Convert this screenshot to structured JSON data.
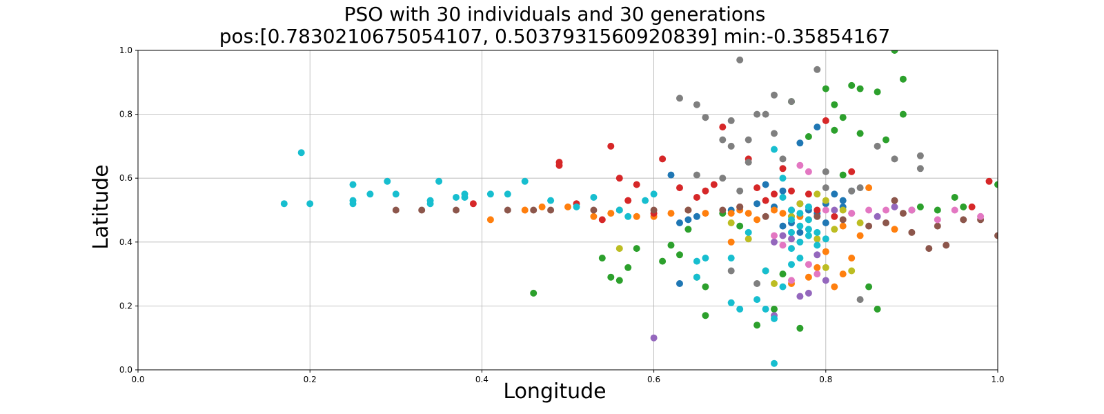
{
  "chart_data": {
    "type": "scatter",
    "title": "PSO with 30 individuals and 30 generations",
    "subtitle": "pos:[0.7830210675054107, 0.5037931560920839] min:-0.35854167",
    "xlabel": "Longitude",
    "ylabel": "Latitude",
    "xlim": [
      0.0,
      1.0
    ],
    "ylim": [
      0.0,
      1.0
    ],
    "xticks": [
      "0.0",
      "0.2",
      "0.4",
      "0.6",
      "0.8",
      "1.0"
    ],
    "yticks": [
      "0.0",
      "0.2",
      "0.4",
      "0.6",
      "0.8",
      "1.0"
    ],
    "grid": true,
    "colors": [
      "#1f77b4",
      "#ff7f0e",
      "#2ca02c",
      "#d62728",
      "#9467bd",
      "#8c564b",
      "#e377c2",
      "#7f7f7f",
      "#bcbd22",
      "#17becf"
    ],
    "series": [
      {
        "color": "#1f77b4",
        "points": [
          [
            0.62,
            0.61
          ],
          [
            0.63,
            0.46
          ],
          [
            0.63,
            0.27
          ],
          [
            0.64,
            0.47
          ],
          [
            0.65,
            0.48
          ],
          [
            0.69,
            0.5
          ],
          [
            0.72,
            0.52
          ],
          [
            0.75,
            0.56
          ],
          [
            0.75,
            0.45
          ],
          [
            0.76,
            0.48
          ],
          [
            0.76,
            0.46
          ],
          [
            0.77,
            0.71
          ],
          [
            0.78,
            0.5
          ],
          [
            0.78,
            0.51
          ],
          [
            0.79,
            0.49
          ],
          [
            0.79,
            0.76
          ],
          [
            0.8,
            0.52
          ],
          [
            0.81,
            0.55
          ],
          [
            0.82,
            0.53
          ],
          [
            0.82,
            0.51
          ],
          [
            0.83,
            0.56
          ],
          [
            0.73,
            0.58
          ],
          [
            0.74,
            0.51
          ],
          [
            0.77,
            0.43
          ],
          [
            0.8,
            0.46
          ]
        ]
      },
      {
        "color": "#ff7f0e",
        "points": [
          [
            0.41,
            0.47
          ],
          [
            0.45,
            0.5
          ],
          [
            0.47,
            0.51
          ],
          [
            0.5,
            0.51
          ],
          [
            0.53,
            0.48
          ],
          [
            0.55,
            0.49
          ],
          [
            0.58,
            0.48
          ],
          [
            0.6,
            0.48
          ],
          [
            0.62,
            0.49
          ],
          [
            0.64,
            0.5
          ],
          [
            0.66,
            0.49
          ],
          [
            0.69,
            0.49
          ],
          [
            0.7,
            0.5
          ],
          [
            0.71,
            0.49
          ],
          [
            0.72,
            0.47
          ],
          [
            0.75,
            0.49
          ],
          [
            0.76,
            0.27
          ],
          [
            0.78,
            0.29
          ],
          [
            0.79,
            0.32
          ],
          [
            0.8,
            0.37
          ],
          [
            0.81,
            0.26
          ],
          [
            0.82,
            0.3
          ],
          [
            0.83,
            0.35
          ],
          [
            0.84,
            0.42
          ],
          [
            0.85,
            0.57
          ],
          [
            0.88,
            0.44
          ],
          [
            0.69,
            0.4
          ],
          [
            0.74,
            0.5
          ],
          [
            0.77,
            0.48
          ],
          [
            0.82,
            0.45
          ]
        ]
      },
      {
        "color": "#2ca02c",
        "points": [
          [
            0.46,
            0.24
          ],
          [
            0.54,
            0.35
          ],
          [
            0.55,
            0.29
          ],
          [
            0.56,
            0.28
          ],
          [
            0.57,
            0.32
          ],
          [
            0.58,
            0.38
          ],
          [
            0.61,
            0.34
          ],
          [
            0.62,
            0.39
          ],
          [
            0.63,
            0.36
          ],
          [
            0.64,
            0.44
          ],
          [
            0.65,
            0.29
          ],
          [
            0.66,
            0.26
          ],
          [
            0.66,
            0.17
          ],
          [
            0.68,
            0.49
          ],
          [
            0.7,
            0.45
          ],
          [
            0.72,
            0.14
          ],
          [
            0.73,
            0.31
          ],
          [
            0.74,
            0.19
          ],
          [
            0.75,
            0.3
          ],
          [
            0.76,
            0.84
          ],
          [
            0.77,
            0.13
          ],
          [
            0.78,
            0.73
          ],
          [
            0.8,
            0.88
          ],
          [
            0.81,
            0.75
          ],
          [
            0.81,
            0.83
          ],
          [
            0.82,
            0.79
          ],
          [
            0.82,
            0.61
          ],
          [
            0.83,
            0.89
          ],
          [
            0.84,
            0.74
          ],
          [
            0.84,
            0.88
          ],
          [
            0.85,
            0.26
          ],
          [
            0.86,
            0.87
          ],
          [
            0.86,
            0.19
          ],
          [
            0.87,
            0.72
          ],
          [
            0.88,
            1.0
          ],
          [
            0.89,
            0.8
          ],
          [
            0.89,
            0.91
          ],
          [
            0.9,
            0.5
          ],
          [
            0.91,
            0.51
          ],
          [
            0.93,
            0.5
          ],
          [
            0.95,
            0.54
          ],
          [
            0.96,
            0.51
          ],
          [
            1.0,
            0.58
          ]
        ]
      },
      {
        "color": "#d62728",
        "points": [
          [
            0.39,
            0.52
          ],
          [
            0.49,
            0.65
          ],
          [
            0.49,
            0.64
          ],
          [
            0.51,
            0.52
          ],
          [
            0.54,
            0.47
          ],
          [
            0.55,
            0.7
          ],
          [
            0.56,
            0.6
          ],
          [
            0.57,
            0.53
          ],
          [
            0.58,
            0.58
          ],
          [
            0.6,
            0.49
          ],
          [
            0.61,
            0.66
          ],
          [
            0.63,
            0.57
          ],
          [
            0.65,
            0.54
          ],
          [
            0.66,
            0.56
          ],
          [
            0.67,
            0.58
          ],
          [
            0.68,
            0.76
          ],
          [
            0.7,
            0.51
          ],
          [
            0.71,
            0.66
          ],
          [
            0.72,
            0.57
          ],
          [
            0.73,
            0.53
          ],
          [
            0.74,
            0.55
          ],
          [
            0.75,
            0.63
          ],
          [
            0.76,
            0.56
          ],
          [
            0.77,
            0.52
          ],
          [
            0.78,
            0.55
          ],
          [
            0.79,
            0.5
          ],
          [
            0.8,
            0.78
          ],
          [
            0.81,
            0.48
          ],
          [
            0.83,
            0.62
          ],
          [
            0.97,
            0.51
          ],
          [
            0.99,
            0.59
          ]
        ]
      },
      {
        "color": "#9467bd",
        "points": [
          [
            0.6,
            0.1
          ],
          [
            0.74,
            0.4
          ],
          [
            0.75,
            0.42
          ],
          [
            0.77,
            0.23
          ],
          [
            0.78,
            0.24
          ],
          [
            0.79,
            0.36
          ],
          [
            0.8,
            0.28
          ],
          [
            0.81,
            0.5
          ],
          [
            0.83,
            0.49
          ],
          [
            0.86,
            0.48
          ],
          [
            0.88,
            0.51
          ],
          [
            0.9,
            0.5
          ],
          [
            0.74,
            0.17
          ],
          [
            0.76,
            0.41
          ]
        ]
      },
      {
        "color": "#8c564b",
        "points": [
          [
            0.3,
            0.5
          ],
          [
            0.33,
            0.5
          ],
          [
            0.37,
            0.5
          ],
          [
            0.43,
            0.5
          ],
          [
            0.46,
            0.5
          ],
          [
            0.48,
            0.5
          ],
          [
            0.53,
            0.5
          ],
          [
            0.56,
            0.5
          ],
          [
            0.6,
            0.5
          ],
          [
            0.64,
            0.5
          ],
          [
            0.68,
            0.5
          ],
          [
            0.7,
            0.51
          ],
          [
            0.73,
            0.48
          ],
          [
            0.76,
            0.5
          ],
          [
            0.79,
            0.48
          ],
          [
            0.82,
            0.47
          ],
          [
            0.85,
            0.45
          ],
          [
            0.87,
            0.46
          ],
          [
            0.89,
            0.49
          ],
          [
            0.9,
            0.43
          ],
          [
            0.92,
            0.38
          ],
          [
            0.93,
            0.45
          ],
          [
            0.94,
            0.39
          ],
          [
            0.96,
            0.47
          ],
          [
            0.98,
            0.47
          ],
          [
            1.0,
            0.42
          ],
          [
            0.88,
            0.53
          ]
        ]
      },
      {
        "color": "#e377c2",
        "points": [
          [
            0.74,
            0.42
          ],
          [
            0.75,
            0.39
          ],
          [
            0.77,
            0.64
          ],
          [
            0.78,
            0.62
          ],
          [
            0.78,
            0.33
          ],
          [
            0.79,
            0.3
          ],
          [
            0.8,
            0.5
          ],
          [
            0.83,
            0.49
          ],
          [
            0.85,
            0.5
          ],
          [
            0.87,
            0.5
          ],
          [
            0.9,
            0.5
          ],
          [
            0.93,
            0.47
          ],
          [
            0.95,
            0.5
          ],
          [
            0.98,
            0.48
          ],
          [
            0.76,
            0.28
          ]
        ]
      },
      {
        "color": "#7f7f7f",
        "points": [
          [
            0.63,
            0.85
          ],
          [
            0.65,
            0.61
          ],
          [
            0.65,
            0.83
          ],
          [
            0.66,
            0.79
          ],
          [
            0.68,
            0.6
          ],
          [
            0.68,
            0.72
          ],
          [
            0.69,
            0.78
          ],
          [
            0.69,
            0.7
          ],
          [
            0.7,
            0.97
          ],
          [
            0.7,
            0.56
          ],
          [
            0.71,
            0.65
          ],
          [
            0.71,
            0.72
          ],
          [
            0.72,
            0.8
          ],
          [
            0.73,
            0.8
          ],
          [
            0.74,
            0.86
          ],
          [
            0.74,
            0.74
          ],
          [
            0.75,
            0.66
          ],
          [
            0.76,
            0.84
          ],
          [
            0.79,
            0.94
          ],
          [
            0.8,
            0.62
          ],
          [
            0.8,
            0.57
          ],
          [
            0.83,
            0.56
          ],
          [
            0.84,
            0.57
          ],
          [
            0.84,
            0.22
          ],
          [
            0.86,
            0.7
          ],
          [
            0.88,
            0.66
          ],
          [
            0.91,
            0.67
          ],
          [
            0.91,
            0.63
          ],
          [
            0.69,
            0.31
          ],
          [
            0.72,
            0.27
          ]
        ]
      },
      {
        "color": "#bcbd22",
        "points": [
          [
            0.56,
            0.38
          ],
          [
            0.69,
            0.46
          ],
          [
            0.71,
            0.41
          ],
          [
            0.74,
            0.27
          ],
          [
            0.76,
            0.48
          ],
          [
            0.78,
            0.47
          ],
          [
            0.79,
            0.55
          ],
          [
            0.8,
            0.53
          ],
          [
            0.8,
            0.32
          ],
          [
            0.81,
            0.44
          ],
          [
            0.82,
            0.5
          ],
          [
            0.83,
            0.31
          ],
          [
            0.84,
            0.46
          ],
          [
            0.77,
            0.52
          ],
          [
            0.79,
            0.41
          ]
        ]
      },
      {
        "color": "#17becf",
        "points": [
          [
            0.17,
            0.52
          ],
          [
            0.19,
            0.68
          ],
          [
            0.2,
            0.52
          ],
          [
            0.25,
            0.58
          ],
          [
            0.25,
            0.53
          ],
          [
            0.25,
            0.52
          ],
          [
            0.27,
            0.55
          ],
          [
            0.29,
            0.59
          ],
          [
            0.3,
            0.55
          ],
          [
            0.34,
            0.53
          ],
          [
            0.34,
            0.52
          ],
          [
            0.35,
            0.59
          ],
          [
            0.37,
            0.54
          ],
          [
            0.38,
            0.54
          ],
          [
            0.38,
            0.55
          ],
          [
            0.41,
            0.55
          ],
          [
            0.43,
            0.55
          ],
          [
            0.45,
            0.59
          ],
          [
            0.48,
            0.53
          ],
          [
            0.51,
            0.51
          ],
          [
            0.53,
            0.54
          ],
          [
            0.56,
            0.5
          ],
          [
            0.57,
            0.48
          ],
          [
            0.59,
            0.53
          ],
          [
            0.6,
            0.55
          ],
          [
            0.65,
            0.34
          ],
          [
            0.65,
            0.29
          ],
          [
            0.66,
            0.35
          ],
          [
            0.69,
            0.35
          ],
          [
            0.69,
            0.21
          ],
          [
            0.7,
            0.19
          ],
          [
            0.71,
            0.43
          ],
          [
            0.72,
            0.22
          ],
          [
            0.73,
            0.31
          ],
          [
            0.73,
            0.19
          ],
          [
            0.74,
            0.69
          ],
          [
            0.74,
            0.16
          ],
          [
            0.74,
            0.02
          ],
          [
            0.75,
            0.26
          ],
          [
            0.75,
            0.6
          ],
          [
            0.75,
            0.54
          ],
          [
            0.76,
            0.47
          ],
          [
            0.76,
            0.43
          ],
          [
            0.76,
            0.38
          ],
          [
            0.76,
            0.33
          ],
          [
            0.77,
            0.45
          ],
          [
            0.77,
            0.4
          ],
          [
            0.77,
            0.35
          ],
          [
            0.78,
            0.44
          ],
          [
            0.78,
            0.42
          ],
          [
            0.78,
            0.47
          ],
          [
            0.79,
            0.43
          ],
          [
            0.79,
            0.39
          ],
          [
            0.8,
            0.41
          ],
          [
            0.76,
            0.5
          ],
          [
            0.77,
            0.49
          ],
          [
            0.78,
            0.51
          ]
        ]
      }
    ]
  }
}
